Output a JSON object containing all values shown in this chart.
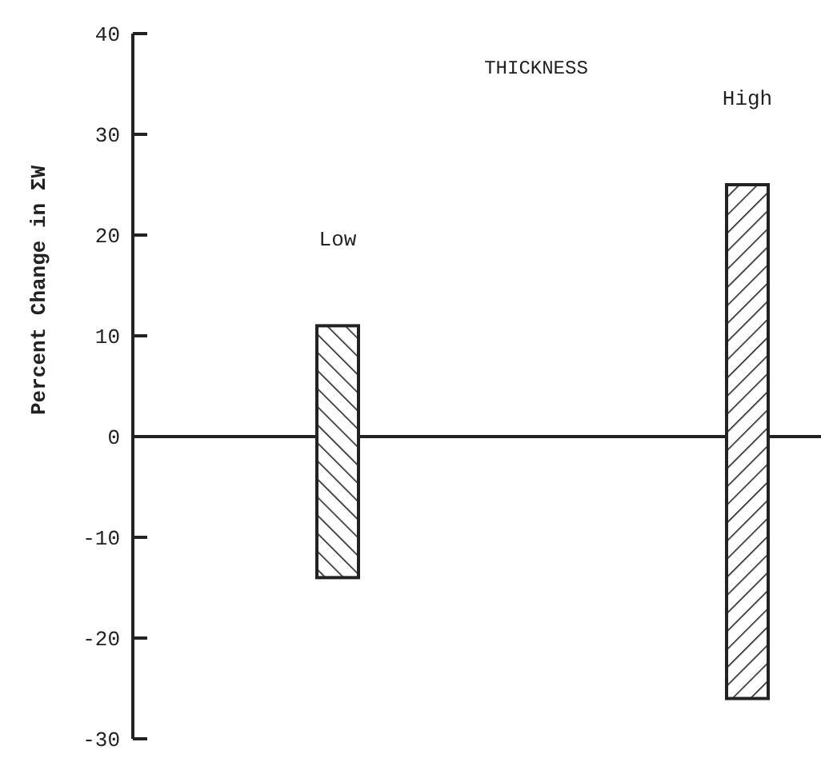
{
  "chart_data": {
    "type": "bar",
    "title": "THICKNESS",
    "ylabel": "Percent Change in ΣW",
    "categories": [
      "Low",
      "High"
    ],
    "values": [
      25,
      51
    ],
    "base": [
      -14,
      -26
    ],
    "color": "#222222",
    "ylim": [
      -30,
      40
    ],
    "yticks": [
      -30,
      -20,
      -10,
      0,
      10,
      20,
      30,
      40
    ]
  }
}
